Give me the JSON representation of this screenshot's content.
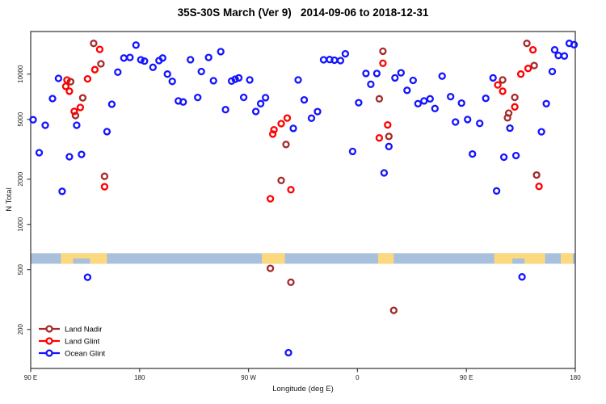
{
  "title": "35S-30S March (Ver 9)   2014-09-06 to 2018-12-31",
  "axes": {
    "x": {
      "label": "Longitude (deg E)",
      "ticks": [
        {
          "deg": 90,
          "label": "90 E"
        },
        {
          "deg": 180,
          "label": "180"
        },
        {
          "deg": 270,
          "label": "90 W"
        },
        {
          "deg": 360,
          "label": "0"
        },
        {
          "deg": 450,
          "label": "90 E"
        },
        {
          "deg": 540,
          "label": "180"
        }
      ],
      "range_deg": [
        90,
        540
      ]
    },
    "y": {
      "label": "N Total",
      "scale": "log",
      "ticks": [
        10000,
        5000,
        2000,
        1000,
        500,
        200
      ],
      "range": [
        150,
        19300
      ]
    }
  },
  "legend": {
    "items": [
      {
        "label": "Land Nadir",
        "color": "#a52a2a"
      },
      {
        "label": "Land Glint",
        "color": "#ff0000"
      },
      {
        "label": "Ocean Glint",
        "color": "#1414ff"
      }
    ]
  },
  "map_strip": {
    "name": "coastline-band-35S-30S",
    "ocean_color": "#a9c0dd",
    "land_color": "#fcd87f",
    "n_range": [
      547,
      643
    ],
    "land_patches_deg": [
      [
        115,
        153
      ],
      [
        281,
        300
      ],
      [
        377,
        390
      ],
      [
        473,
        515
      ],
      [
        528,
        538
      ]
    ],
    "ocean_notches_deg": [
      [
        125,
        139
      ],
      [
        488,
        498
      ]
    ]
  },
  "style": {
    "frame_color": "#3f3f3f",
    "marker_radius": 3.5,
    "marker_stroke_width": 2.3
  },
  "chart_data": {
    "type": "scatter",
    "x_unit": "longitude deg E (axis wraps: 90E to 180 to 90W to 0 to 90E to 180)",
    "y_unit": "N Total (log scale)",
    "series": [
      {
        "name": "Land Nadir",
        "color": "#a52a2a",
        "points": [
          [
            142,
            16000
          ],
          [
            148,
            11700
          ],
          [
            123,
            8900
          ],
          [
            133,
            6950
          ],
          [
            127,
            5300
          ],
          [
            151,
            2090
          ],
          [
            301,
            3400
          ],
          [
            297,
            1960
          ],
          [
            381,
            14200
          ],
          [
            378,
            6850
          ],
          [
            386,
            3850
          ],
          [
            500,
            16000
          ],
          [
            506,
            11400
          ],
          [
            480,
            9150
          ],
          [
            490,
            7000
          ],
          [
            485,
            5500
          ],
          [
            484,
            5120
          ],
          [
            508,
            2130
          ],
          [
            288,
            510
          ],
          [
            305,
            412
          ],
          [
            390,
            268
          ]
        ]
      },
      {
        "name": "Land Glint",
        "color": "#ff0000",
        "points": [
          [
            147,
            14600
          ],
          [
            143,
            10700
          ],
          [
            137,
            9300
          ],
          [
            120,
            9140
          ],
          [
            119,
            8280
          ],
          [
            122,
            7690
          ],
          [
            131,
            6000
          ],
          [
            126,
            5650
          ],
          [
            151,
            1780
          ],
          [
            302,
            5100
          ],
          [
            297,
            4680
          ],
          [
            291,
            4260
          ],
          [
            290,
            3990
          ],
          [
            305,
            1700
          ],
          [
            288,
            1480
          ],
          [
            381,
            11800
          ],
          [
            385,
            4590
          ],
          [
            378,
            3760
          ],
          [
            505,
            14500
          ],
          [
            501,
            10900
          ],
          [
            495,
            10000
          ],
          [
            476,
            8470
          ],
          [
            480,
            7690
          ],
          [
            490,
            6050
          ],
          [
            510,
            1790
          ]
        ]
      },
      {
        "name": "Ocean Glint",
        "color": "#1414ff",
        "points": [
          [
            113,
            9370
          ],
          [
            108,
            6870
          ],
          [
            92,
            4970
          ],
          [
            102,
            4570
          ],
          [
            128,
            4570
          ],
          [
            153,
            4140
          ],
          [
            97,
            3000
          ],
          [
            122,
            2820
          ],
          [
            132,
            2920
          ],
          [
            116,
            1660
          ],
          [
            162,
            10300
          ],
          [
            157,
            6300
          ],
          [
            167,
            12800
          ],
          [
            172,
            12900
          ],
          [
            177,
            15600
          ],
          [
            181,
            12450
          ],
          [
            184,
            12200
          ],
          [
            191,
            11100
          ],
          [
            196,
            12300
          ],
          [
            199,
            12800
          ],
          [
            203,
            10000
          ],
          [
            222,
            12460
          ],
          [
            237,
            12900
          ],
          [
            247,
            14100
          ],
          [
            231,
            10400
          ],
          [
            207,
            8950
          ],
          [
            212,
            6630
          ],
          [
            216,
            6520
          ],
          [
            228,
            6990
          ],
          [
            241,
            9040
          ],
          [
            251,
            5800
          ],
          [
            256,
            8990
          ],
          [
            259,
            9250
          ],
          [
            262,
            9440
          ],
          [
            266,
            7000
          ],
          [
            271,
            9150
          ],
          [
            276,
            5640
          ],
          [
            280,
            6360
          ],
          [
            284,
            6970
          ],
          [
            311,
            9150
          ],
          [
            316,
            6740
          ],
          [
            307,
            4350
          ],
          [
            322,
            5090
          ],
          [
            327,
            5630
          ],
          [
            332,
            12450
          ],
          [
            337,
            12500
          ],
          [
            341,
            12380
          ],
          [
            346,
            12300
          ],
          [
            350,
            13650
          ],
          [
            367,
            10100
          ],
          [
            376,
            10100
          ],
          [
            371,
            8560
          ],
          [
            391,
            9440
          ],
          [
            396,
            10200
          ],
          [
            406,
            9080
          ],
          [
            401,
            7800
          ],
          [
            361,
            6450
          ],
          [
            410,
            6360
          ],
          [
            415,
            6630
          ],
          [
            420,
            6850
          ],
          [
            424,
            5900
          ],
          [
            430,
            9700
          ],
          [
            356,
            3060
          ],
          [
            382,
            2200
          ],
          [
            386,
            3300
          ],
          [
            441,
            4800
          ],
          [
            451,
            4990
          ],
          [
            461,
            4700
          ],
          [
            437,
            7080
          ],
          [
            446,
            6410
          ],
          [
            466,
            6900
          ],
          [
            472,
            9440
          ],
          [
            475,
            1670
          ],
          [
            481,
            2800
          ],
          [
            491,
            2870
          ],
          [
            486,
            4370
          ],
          [
            512,
            4130
          ],
          [
            455,
            2940
          ],
          [
            521,
            10400
          ],
          [
            523,
            14500
          ],
          [
            526,
            13300
          ],
          [
            531,
            13200
          ],
          [
            535,
            16000
          ],
          [
            539,
            15700
          ],
          [
            516,
            6360
          ],
          [
            137,
            445
          ],
          [
            496,
            447
          ],
          [
            303,
            140
          ]
        ]
      }
    ]
  }
}
